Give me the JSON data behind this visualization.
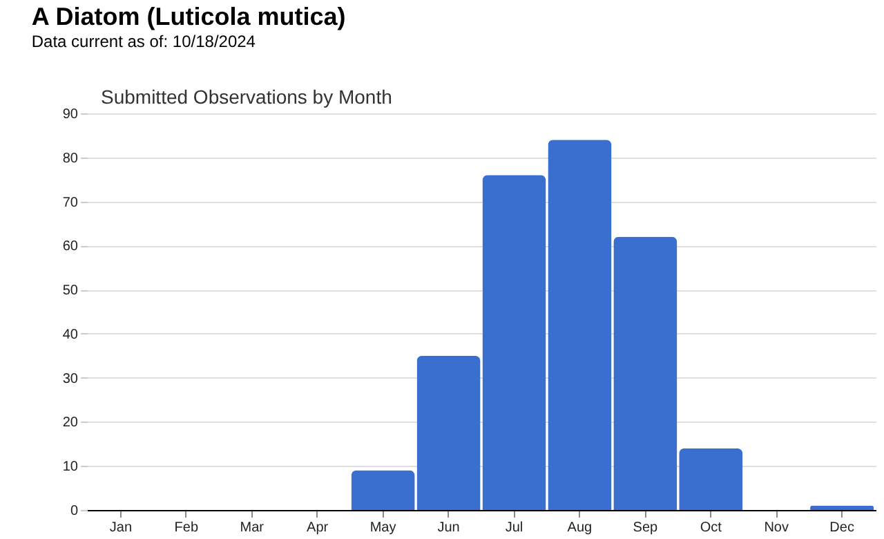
{
  "chart_data": {
    "type": "bar",
    "title": "A Diatom   (Luticola mutica)",
    "subtitle": "Data current as of: 10/18/2024",
    "annotations": [
      "Submitted Observations by Month"
    ],
    "categories": [
      "Jan",
      "Feb",
      "Mar",
      "Apr",
      "May",
      "Jun",
      "Jul",
      "Aug",
      "Sep",
      "Oct",
      "Nov",
      "Dec"
    ],
    "values": [
      0,
      0,
      0,
      0,
      9,
      35,
      76,
      84,
      62,
      14,
      0,
      1
    ],
    "color": "#3a6fd0",
    "ylim": [
      0,
      90
    ],
    "yticks": [
      0,
      10,
      20,
      30,
      40,
      50,
      60,
      70,
      80,
      90
    ],
    "grid": "y"
  }
}
